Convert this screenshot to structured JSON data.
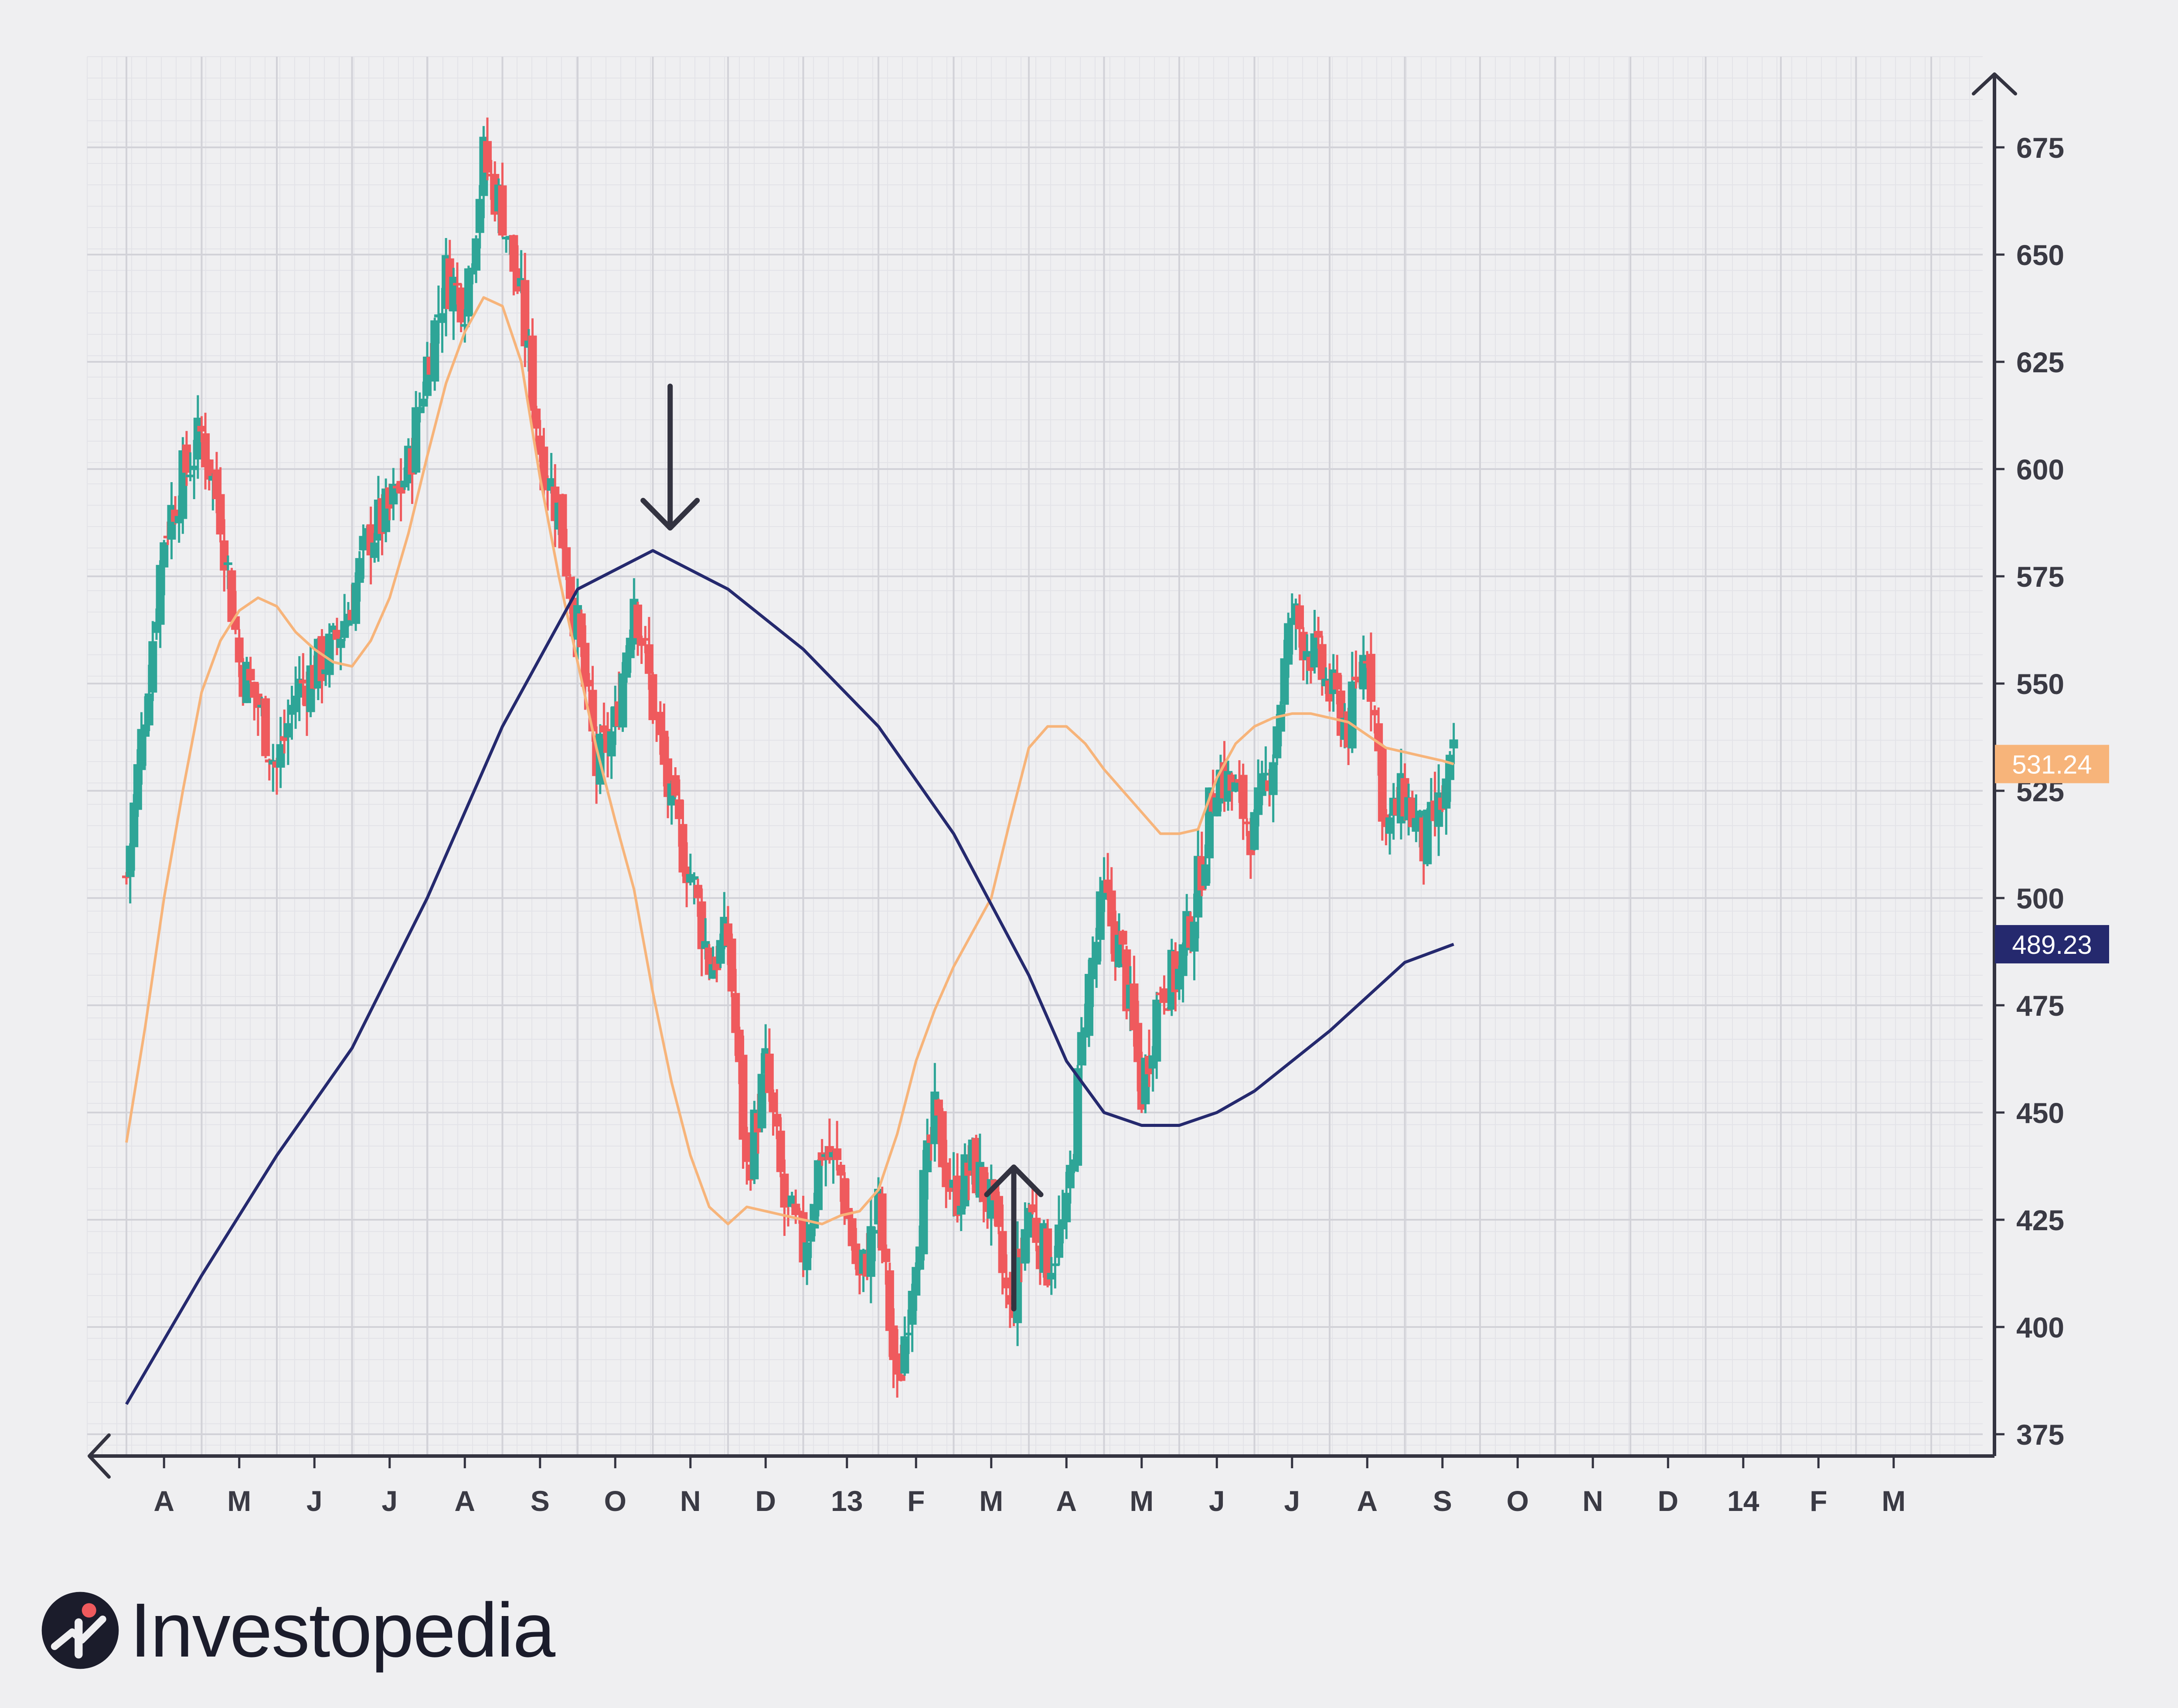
{
  "colors": {
    "background": "#efeff1",
    "up": "#2ea597",
    "down": "#ef5a5d",
    "ma_short": "#f7b47a",
    "ma_long": "#25296e",
    "axis": "#333340",
    "grid_major": "#d2d2d8",
    "grid_minor": "#e3e3e8",
    "brand": "#1b1c2b"
  },
  "brand": {
    "name": "Investopedia",
    "logo_icon": "investopedia-logo-icon"
  },
  "chart_data": {
    "type": "candlestick",
    "y_axis": {
      "ticks": [
        375,
        400,
        425,
        450,
        475,
        500,
        525,
        550,
        575,
        600,
        625,
        650,
        675
      ],
      "range": [
        370,
        688
      ],
      "side": "right"
    },
    "x_axis": {
      "tick_labels": [
        "A",
        "M",
        "J",
        "J",
        "A",
        "S",
        "O",
        "N",
        "D",
        "13",
        "F",
        "M",
        "A",
        "M",
        "J",
        "J",
        "A",
        "S",
        "O",
        "N",
        "D",
        "14",
        "F",
        "M"
      ],
      "range_months": [
        0,
        24.5
      ]
    },
    "grid": true,
    "series": [
      {
        "kind": "close_path",
        "points": [
          [
            0,
            505
          ],
          [
            0.25,
            545
          ],
          [
            0.5,
            585
          ],
          [
            0.75,
            598
          ],
          [
            1,
            608
          ],
          [
            1.25,
            590
          ],
          [
            1.5,
            555
          ],
          [
            1.75,
            545
          ],
          [
            2,
            530
          ],
          [
            2.25,
            548
          ],
          [
            2.5,
            553
          ],
          [
            2.75,
            558
          ],
          [
            3,
            570
          ],
          [
            3.25,
            585
          ],
          [
            3.5,
            590
          ],
          [
            3.75,
            600
          ],
          [
            4,
            625
          ],
          [
            4.25,
            645
          ],
          [
            4.5,
            640
          ],
          [
            4.75,
            672
          ],
          [
            5,
            660
          ],
          [
            5.25,
            638
          ],
          [
            5.5,
            605
          ],
          [
            5.75,
            590
          ],
          [
            6,
            562
          ],
          [
            6.25,
            530
          ],
          [
            6.5,
            540
          ],
          [
            6.75,
            572
          ],
          [
            7,
            545
          ],
          [
            7.25,
            520
          ],
          [
            7.5,
            506
          ],
          [
            7.75,
            485
          ],
          [
            8,
            490
          ],
          [
            8.25,
            436
          ],
          [
            8.5,
            460
          ],
          [
            8.75,
            428
          ],
          [
            9,
            418
          ],
          [
            9.25,
            442
          ],
          [
            9.5,
            435
          ],
          [
            9.75,
            410
          ],
          [
            10,
            427
          ],
          [
            10.25,
            384
          ],
          [
            10.5,
            420
          ],
          [
            10.75,
            448
          ],
          [
            11,
            430
          ],
          [
            11.25,
            438
          ],
          [
            11.5,
            428
          ],
          [
            11.75,
            402
          ],
          [
            12,
            428
          ],
          [
            12.25,
            415
          ],
          [
            12.5,
            425
          ],
          [
            12.75,
            475
          ],
          [
            13,
            500
          ],
          [
            13.25,
            485
          ],
          [
            13.5,
            455
          ],
          [
            13.75,
            480
          ],
          [
            14,
            482
          ],
          [
            14.25,
            503
          ],
          [
            14.5,
            530
          ],
          [
            14.75,
            524
          ],
          [
            15,
            515
          ],
          [
            15.25,
            535
          ],
          [
            15.5,
            566
          ],
          [
            15.75,
            558
          ],
          [
            16,
            548
          ],
          [
            16.25,
            540
          ],
          [
            16.5,
            560
          ],
          [
            16.75,
            515
          ],
          [
            17,
            524
          ],
          [
            17.25,
            512
          ],
          [
            17.5,
            522
          ],
          [
            17.65,
            531.24
          ]
        ]
      },
      {
        "kind": "moving_average",
        "name": "",
        "value_label": "531.24",
        "points": [
          [
            0,
            443
          ],
          [
            0.25,
            470
          ],
          [
            0.5,
            500
          ],
          [
            0.75,
            525
          ],
          [
            1,
            548
          ],
          [
            1.25,
            560
          ],
          [
            1.5,
            567
          ],
          [
            1.75,
            570
          ],
          [
            2,
            568
          ],
          [
            2.25,
            562
          ],
          [
            2.5,
            558
          ],
          [
            2.75,
            555
          ],
          [
            3,
            554
          ],
          [
            3.25,
            560
          ],
          [
            3.5,
            570
          ],
          [
            3.75,
            585
          ],
          [
            4,
            603
          ],
          [
            4.25,
            620
          ],
          [
            4.5,
            632
          ],
          [
            4.75,
            640
          ],
          [
            5,
            638
          ],
          [
            5.25,
            625
          ],
          [
            5.5,
            598
          ],
          [
            5.75,
            575
          ],
          [
            6,
            555
          ],
          [
            6.25,
            535
          ],
          [
            6.5,
            518
          ],
          [
            6.75,
            502
          ],
          [
            7,
            478
          ],
          [
            7.25,
            457
          ],
          [
            7.5,
            440
          ],
          [
            7.75,
            428
          ],
          [
            8,
            424
          ],
          [
            8.25,
            428
          ],
          [
            8.5,
            427
          ],
          [
            8.75,
            426
          ],
          [
            9,
            425
          ],
          [
            9.25,
            424
          ],
          [
            9.5,
            426
          ],
          [
            9.75,
            427
          ],
          [
            10,
            432
          ],
          [
            10.25,
            445
          ],
          [
            10.5,
            462
          ],
          [
            10.75,
            474
          ],
          [
            11,
            484
          ],
          [
            11.25,
            492
          ],
          [
            11.5,
            500
          ],
          [
            11.75,
            518
          ],
          [
            12,
            535
          ],
          [
            12.25,
            540
          ],
          [
            12.5,
            540
          ],
          [
            12.75,
            536
          ],
          [
            13,
            530
          ],
          [
            13.25,
            525
          ],
          [
            13.5,
            520
          ],
          [
            13.75,
            515
          ],
          [
            14,
            515
          ],
          [
            14.25,
            516
          ],
          [
            14.5,
            528
          ],
          [
            14.75,
            536
          ],
          [
            15,
            540
          ],
          [
            15.25,
            542
          ],
          [
            15.5,
            543
          ],
          [
            15.75,
            543
          ],
          [
            16,
            542
          ],
          [
            16.25,
            541
          ],
          [
            16.5,
            538
          ],
          [
            16.75,
            535
          ],
          [
            17,
            534
          ],
          [
            17.25,
            533
          ],
          [
            17.5,
            532
          ],
          [
            17.65,
            531.24
          ]
        ]
      },
      {
        "kind": "moving_average",
        "name": "",
        "value_label": "489.23",
        "points": [
          [
            0,
            382
          ],
          [
            1,
            412
          ],
          [
            2,
            440
          ],
          [
            3,
            465
          ],
          [
            4,
            500
          ],
          [
            5,
            540
          ],
          [
            6,
            572
          ],
          [
            7,
            581
          ],
          [
            8,
            572
          ],
          [
            9,
            558
          ],
          [
            10,
            540
          ],
          [
            11,
            515
          ],
          [
            12,
            482
          ],
          [
            12.5,
            462
          ],
          [
            13,
            450
          ],
          [
            13.5,
            447
          ],
          [
            14,
            447
          ],
          [
            14.5,
            450
          ],
          [
            15,
            455
          ],
          [
            15.5,
            462
          ],
          [
            16,
            469
          ],
          [
            16.5,
            477
          ],
          [
            17,
            485
          ],
          [
            17.65,
            489.23
          ]
        ]
      }
    ],
    "annotations": [
      {
        "type": "arrow",
        "direction": "down",
        "x_month": 7.23,
        "price": 600
      },
      {
        "type": "arrow",
        "direction": "up",
        "x_month": 11.8,
        "price": 420
      }
    ]
  }
}
